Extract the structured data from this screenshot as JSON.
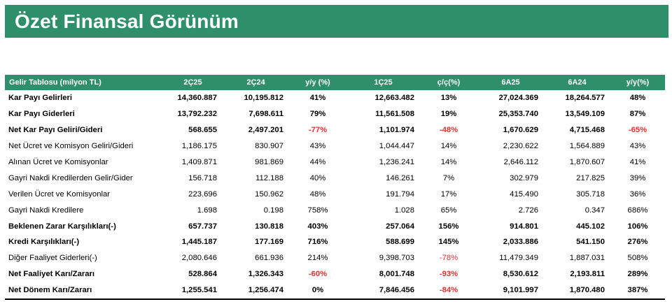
{
  "title": "Özet Finansal Görünüm",
  "table": {
    "headers": [
      "Gelir Tablosu (milyon TL)",
      "2Ç25",
      "2Ç24",
      "y/y (%)",
      "1Ç25",
      "ç/ç(%)",
      "6A25",
      "6A24",
      "y/y(%)"
    ],
    "rows": [
      {
        "bold": true,
        "cells": [
          "Kar Payı Gelirleri",
          "14,360.887",
          "10,195.812",
          "41%",
          "12,663.482",
          "13%",
          "27,024.369",
          "18,264.577",
          "48%"
        ]
      },
      {
        "bold": true,
        "cells": [
          "Kar Payı Giderleri",
          "13,792.232",
          "7,698.611",
          "79%",
          "11,561.508",
          "19%",
          "25,353.740",
          "13,549.109",
          "87%"
        ]
      },
      {
        "bold": true,
        "cells": [
          "Net Kar Payı Geliri/Gideri",
          "568.655",
          "2,497.201",
          "-77%",
          "1,101.974",
          "-48%",
          "1,670.629",
          "4,715.468",
          "-65%"
        ]
      },
      {
        "bold": false,
        "cells": [
          "Net Ücret ve Komisyon Geliri/Gideri",
          "1,186.175",
          "830.907",
          "43%",
          "1,044.447",
          "14%",
          "2,230.622",
          "1,564.889",
          "43%"
        ]
      },
      {
        "bold": false,
        "cells": [
          "Alınan Ücret ve Komisyonlar",
          "1,409.871",
          "981.869",
          "44%",
          "1,236.241",
          "14%",
          "2,646.112",
          "1,870.607",
          "41%"
        ]
      },
      {
        "bold": false,
        "cells": [
          "Gayri Nakdi Kredilerden Gelir/Gider",
          "156.718",
          "112.188",
          "40%",
          "146.261",
          "7%",
          "302.979",
          "217.825",
          "39%"
        ]
      },
      {
        "bold": false,
        "cells": [
          "Verilen Ücret ve Komisyonlar",
          "223.696",
          "150.962",
          "48%",
          "191.794",
          "17%",
          "415.490",
          "305.718",
          "36%"
        ]
      },
      {
        "bold": false,
        "cells": [
          "Gayri Nakdi Kredilere",
          "1.698",
          "0.198",
          "758%",
          "1.028",
          "65%",
          "2.726",
          "0.347",
          "686%"
        ]
      },
      {
        "bold": true,
        "cells": [
          "Beklenen Zarar Karşılıkları(-)",
          "657.737",
          "130.818",
          "403%",
          "257.064",
          "156%",
          "914.801",
          "445.102",
          "106%"
        ]
      },
      {
        "bold": true,
        "cells": [
          "Kredi Karşılıkları(-)",
          "1,445.187",
          "177.169",
          "716%",
          "588.699",
          "145%",
          "2,033.886",
          "541.150",
          "276%"
        ]
      },
      {
        "bold": false,
        "cells": [
          "Diğer Faaliyet Giderleri(-)",
          "2,080.646",
          "661.936",
          "214%",
          "9,398.703",
          "-78%",
          "11,479.349",
          "1,887.031",
          "508%"
        ]
      },
      {
        "bold": true,
        "cells": [
          "Net Faaliyet Karı/Zararı",
          "528.864",
          "1,326.343",
          "-60%",
          "8,001.748",
          "-93%",
          "8,530.612",
          "2,193.811",
          "289%"
        ]
      },
      {
        "bold": true,
        "cells": [
          "Net Dönem Karı/Zararı",
          "1,255.541",
          "1,256.474",
          "0%",
          "7,846.456",
          "-84%",
          "9,101.997",
          "1,870.480",
          "387%"
        ]
      }
    ],
    "colors": {
      "header_bg": "#2f8f6b",
      "header_text": "#ffffff",
      "negative": "#e0312f"
    }
  }
}
